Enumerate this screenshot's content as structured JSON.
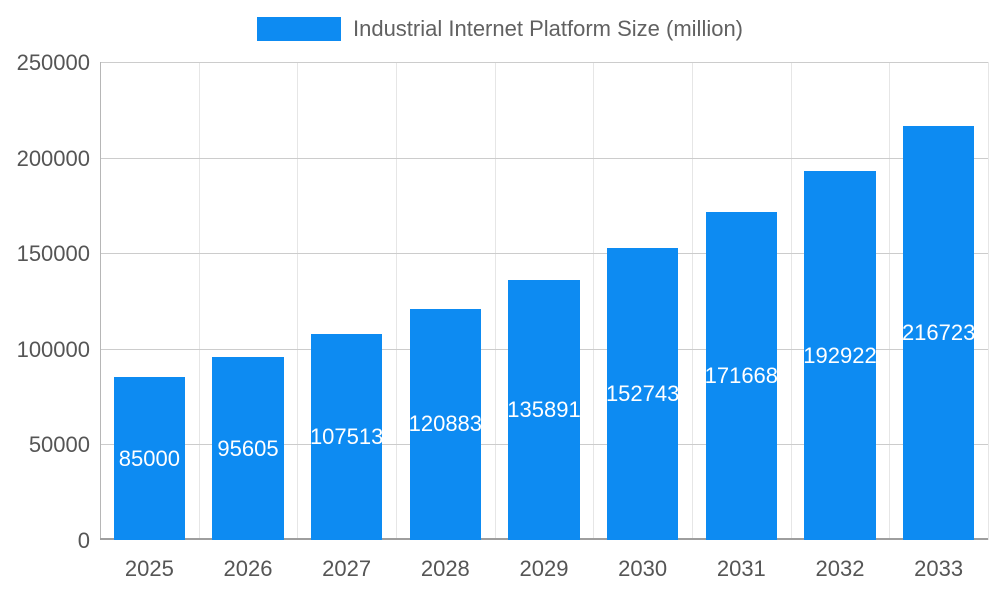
{
  "chart_data": {
    "type": "bar",
    "title": "Industrial Internet Platform Size (million)",
    "categories": [
      "2025",
      "2026",
      "2027",
      "2028",
      "2029",
      "2030",
      "2031",
      "2032",
      "2033"
    ],
    "values": [
      85000,
      95605,
      107513,
      120883,
      135891,
      152743,
      171668,
      192922,
      216723
    ],
    "xlabel": "",
    "ylabel": "",
    "ylim": [
      0,
      250000
    ],
    "yticks": [
      0,
      50000,
      100000,
      150000,
      200000,
      250000
    ],
    "grid": "on",
    "legend_position": "top",
    "bar_color": "#0d8bf2",
    "value_label_color": "#ffffff",
    "axis_text_color": "#555555",
    "gridline_color": "#cccccc"
  }
}
